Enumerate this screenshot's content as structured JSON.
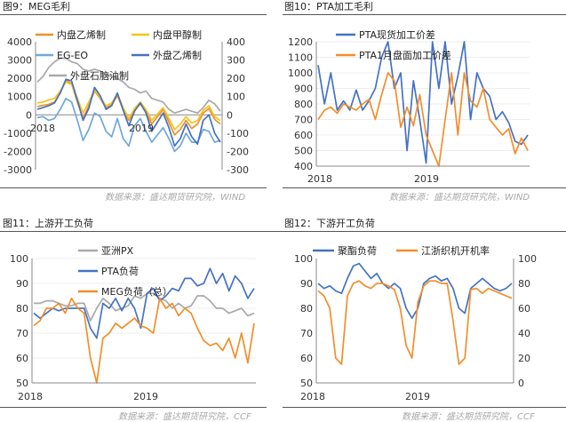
{
  "chart_data": [
    {
      "type": "line",
      "title": "图9：MEG毛利",
      "source": "数据来源：盛达期货研究院，WIND",
      "x_labels": [
        "2018",
        "2019"
      ],
      "left_axis": {
        "ylim": [
          -3000,
          4000
        ],
        "ticks": [
          4000,
          3000,
          2000,
          1000,
          0,
          -1000,
          -2000,
          -3000
        ]
      },
      "right_axis": {
        "ylim": [
          -300,
          400
        ],
        "ticks": [
          400,
          300,
          200,
          100,
          0,
          -100,
          -200,
          -300
        ]
      },
      "series": [
        {
          "name": "内盘乙烯制",
          "color": "#f28e2b",
          "axis": "left",
          "values": [
            450,
            520,
            580,
            700,
            1200,
            1900,
            1700,
            700,
            -200,
            500,
            1300,
            900,
            400,
            550,
            1050,
            300,
            -300,
            250,
            600,
            150,
            -500,
            -100,
            300,
            -400,
            -1100,
            -800,
            -300,
            -750,
            -500,
            100,
            350,
            -250,
            -500
          ]
        },
        {
          "name": "内盘甲醇制",
          "color": "#f5c518",
          "axis": "left",
          "values": [
            650,
            700,
            820,
            900,
            1300,
            1800,
            1650,
            900,
            100,
            700,
            1350,
            950,
            500,
            650,
            1150,
            400,
            -200,
            350,
            700,
            300,
            -300,
            50,
            400,
            -200,
            -800,
            -500,
            -100,
            -450,
            -300,
            250,
            500,
            -100,
            -300
          ]
        },
        {
          "name": "EG-EO",
          "color": "#6fa8dc",
          "axis": "left",
          "values": [
            -150,
            -100,
            -300,
            -200,
            300,
            900,
            700,
            -300,
            -1400,
            -800,
            100,
            -100,
            -900,
            -1200,
            -200,
            -1300,
            -1700,
            -600,
            -200,
            -900,
            -1500,
            -1100,
            -700,
            -1300,
            -2000,
            -1700,
            -1000,
            -1500,
            -1500,
            -800,
            -900,
            -1500,
            -1400
          ]
        },
        {
          "name": "外盘乙烯制",
          "color": "#4472c4",
          "axis": "left",
          "values": [
            300,
            400,
            500,
            650,
            1200,
            1950,
            1850,
            800,
            -300,
            350,
            1500,
            1050,
            300,
            500,
            1200,
            250,
            -600,
            200,
            650,
            100,
            -900,
            -400,
            100,
            -700,
            -1700,
            -1300,
            -500,
            -1200,
            -1600,
            -300,
            0,
            -1000,
            -1500
          ]
        },
        {
          "name": "外盘石脑油制",
          "color": "#a9a9a9",
          "axis": "right",
          "values": [
            180,
            210,
            260,
            290,
            310,
            310,
            290,
            280,
            250,
            240,
            250,
            240,
            220,
            210,
            200,
            180,
            150,
            140,
            120,
            130,
            90,
            80,
            70,
            30,
            10,
            20,
            30,
            20,
            10,
            40,
            80,
            60,
            20
          ]
        }
      ]
    },
    {
      "type": "line",
      "title": "图10：PTA加工毛利",
      "source": "数据来源：盛达期货研究院，WIND",
      "x_labels": [
        "2018",
        "2019"
      ],
      "ylim": [
        400,
        1200
      ],
      "ticks": [
        1200,
        1100,
        1000,
        900,
        800,
        700,
        600,
        500,
        400
      ],
      "series": [
        {
          "name": "PTA现货加工价差",
          "color": "#4472c4",
          "values": [
            1050,
            800,
            1000,
            760,
            820,
            760,
            890,
            760,
            820,
            900,
            1100,
            1200,
            900,
            1000,
            500,
            950,
            700,
            420,
            1200,
            900,
            1200,
            800,
            980,
            1200,
            700,
            1000,
            900,
            850,
            700,
            750,
            680,
            560,
            540,
            600
          ]
        },
        {
          "name": "PTA1月盘面加工价差",
          "color": "#f28e2b",
          "values": [
            700,
            760,
            780,
            740,
            800,
            780,
            760,
            800,
            830,
            700,
            860,
            1000,
            950,
            650,
            780,
            660,
            860,
            600,
            500,
            400,
            700,
            1000,
            600,
            1000,
            820,
            780,
            900,
            700,
            650,
            600,
            640,
            480,
            580,
            500
          ]
        }
      ]
    },
    {
      "type": "line",
      "title": "图11：上游开工负荷",
      "source": "数据来源：盛达期货研究院，CCF",
      "x_labels": [
        "2018",
        "2019"
      ],
      "ylim": [
        50,
        100
      ],
      "ticks": [
        100,
        90,
        80,
        70,
        60,
        50
      ],
      "series": [
        {
          "name": "亚洲PX",
          "color": "#a9a9a9",
          "values": [
            82,
            82,
            83,
            83,
            82,
            81,
            81,
            82,
            82,
            75,
            80,
            84,
            82,
            79,
            80,
            81,
            85,
            84,
            86,
            86,
            84,
            83,
            80,
            82,
            80,
            81,
            85,
            85,
            83,
            80,
            80,
            78,
            79,
            80,
            77,
            78
          ]
        },
        {
          "name": "PTA负荷",
          "color": "#4472c4",
          "values": [
            78,
            76,
            78,
            80,
            79,
            80,
            80,
            80,
            80,
            72,
            68,
            82,
            80,
            84,
            79,
            84,
            80,
            72,
            86,
            88,
            83,
            85,
            88,
            87,
            92,
            92,
            89,
            90,
            96,
            90,
            94,
            87,
            93,
            90,
            84,
            88
          ]
        },
        {
          "name": "MEG负荷（总）",
          "color": "#f28e2b",
          "values": [
            73,
            75,
            80,
            80,
            82,
            78,
            84,
            80,
            78,
            60,
            50,
            68,
            70,
            74,
            72,
            74,
            76,
            73,
            72,
            70,
            84,
            80,
            82,
            77,
            80,
            78,
            72,
            67,
            65,
            66,
            63,
            68,
            60,
            70,
            58,
            74
          ]
        }
      ]
    },
    {
      "type": "line",
      "title": "图12：下游开工负荷",
      "source": "数据来源：盛达期货研究院，CCF",
      "x_labels": [
        "2018",
        "2019"
      ],
      "left_axis": {
        "ylim": [
          50,
          100
        ],
        "ticks": [
          100,
          90,
          80,
          70,
          60,
          50
        ]
      },
      "right_axis": {
        "ylim": [
          0,
          100
        ],
        "ticks": [
          100,
          80,
          60,
          40,
          20,
          0
        ]
      },
      "series": [
        {
          "name": "聚酯负荷",
          "color": "#4472c4",
          "axis": "left",
          "values": [
            90,
            88,
            89,
            87,
            86,
            92,
            97,
            98,
            95,
            92,
            94,
            90,
            88,
            90,
            88,
            80,
            76,
            80,
            90,
            92,
            93,
            91,
            92,
            88,
            80,
            78,
            88,
            90,
            92,
            90,
            88,
            87,
            88,
            90
          ]
        },
        {
          "name": "江浙织机开机率",
          "color": "#f28e2b",
          "axis": "right",
          "values": [
            74,
            70,
            60,
            20,
            15,
            70,
            80,
            82,
            78,
            76,
            80,
            80,
            78,
            75,
            60,
            30,
            20,
            65,
            78,
            82,
            82,
            80,
            80,
            50,
            15,
            20,
            75,
            76,
            72,
            76,
            74,
            72,
            70,
            68
          ]
        }
      ]
    }
  ]
}
